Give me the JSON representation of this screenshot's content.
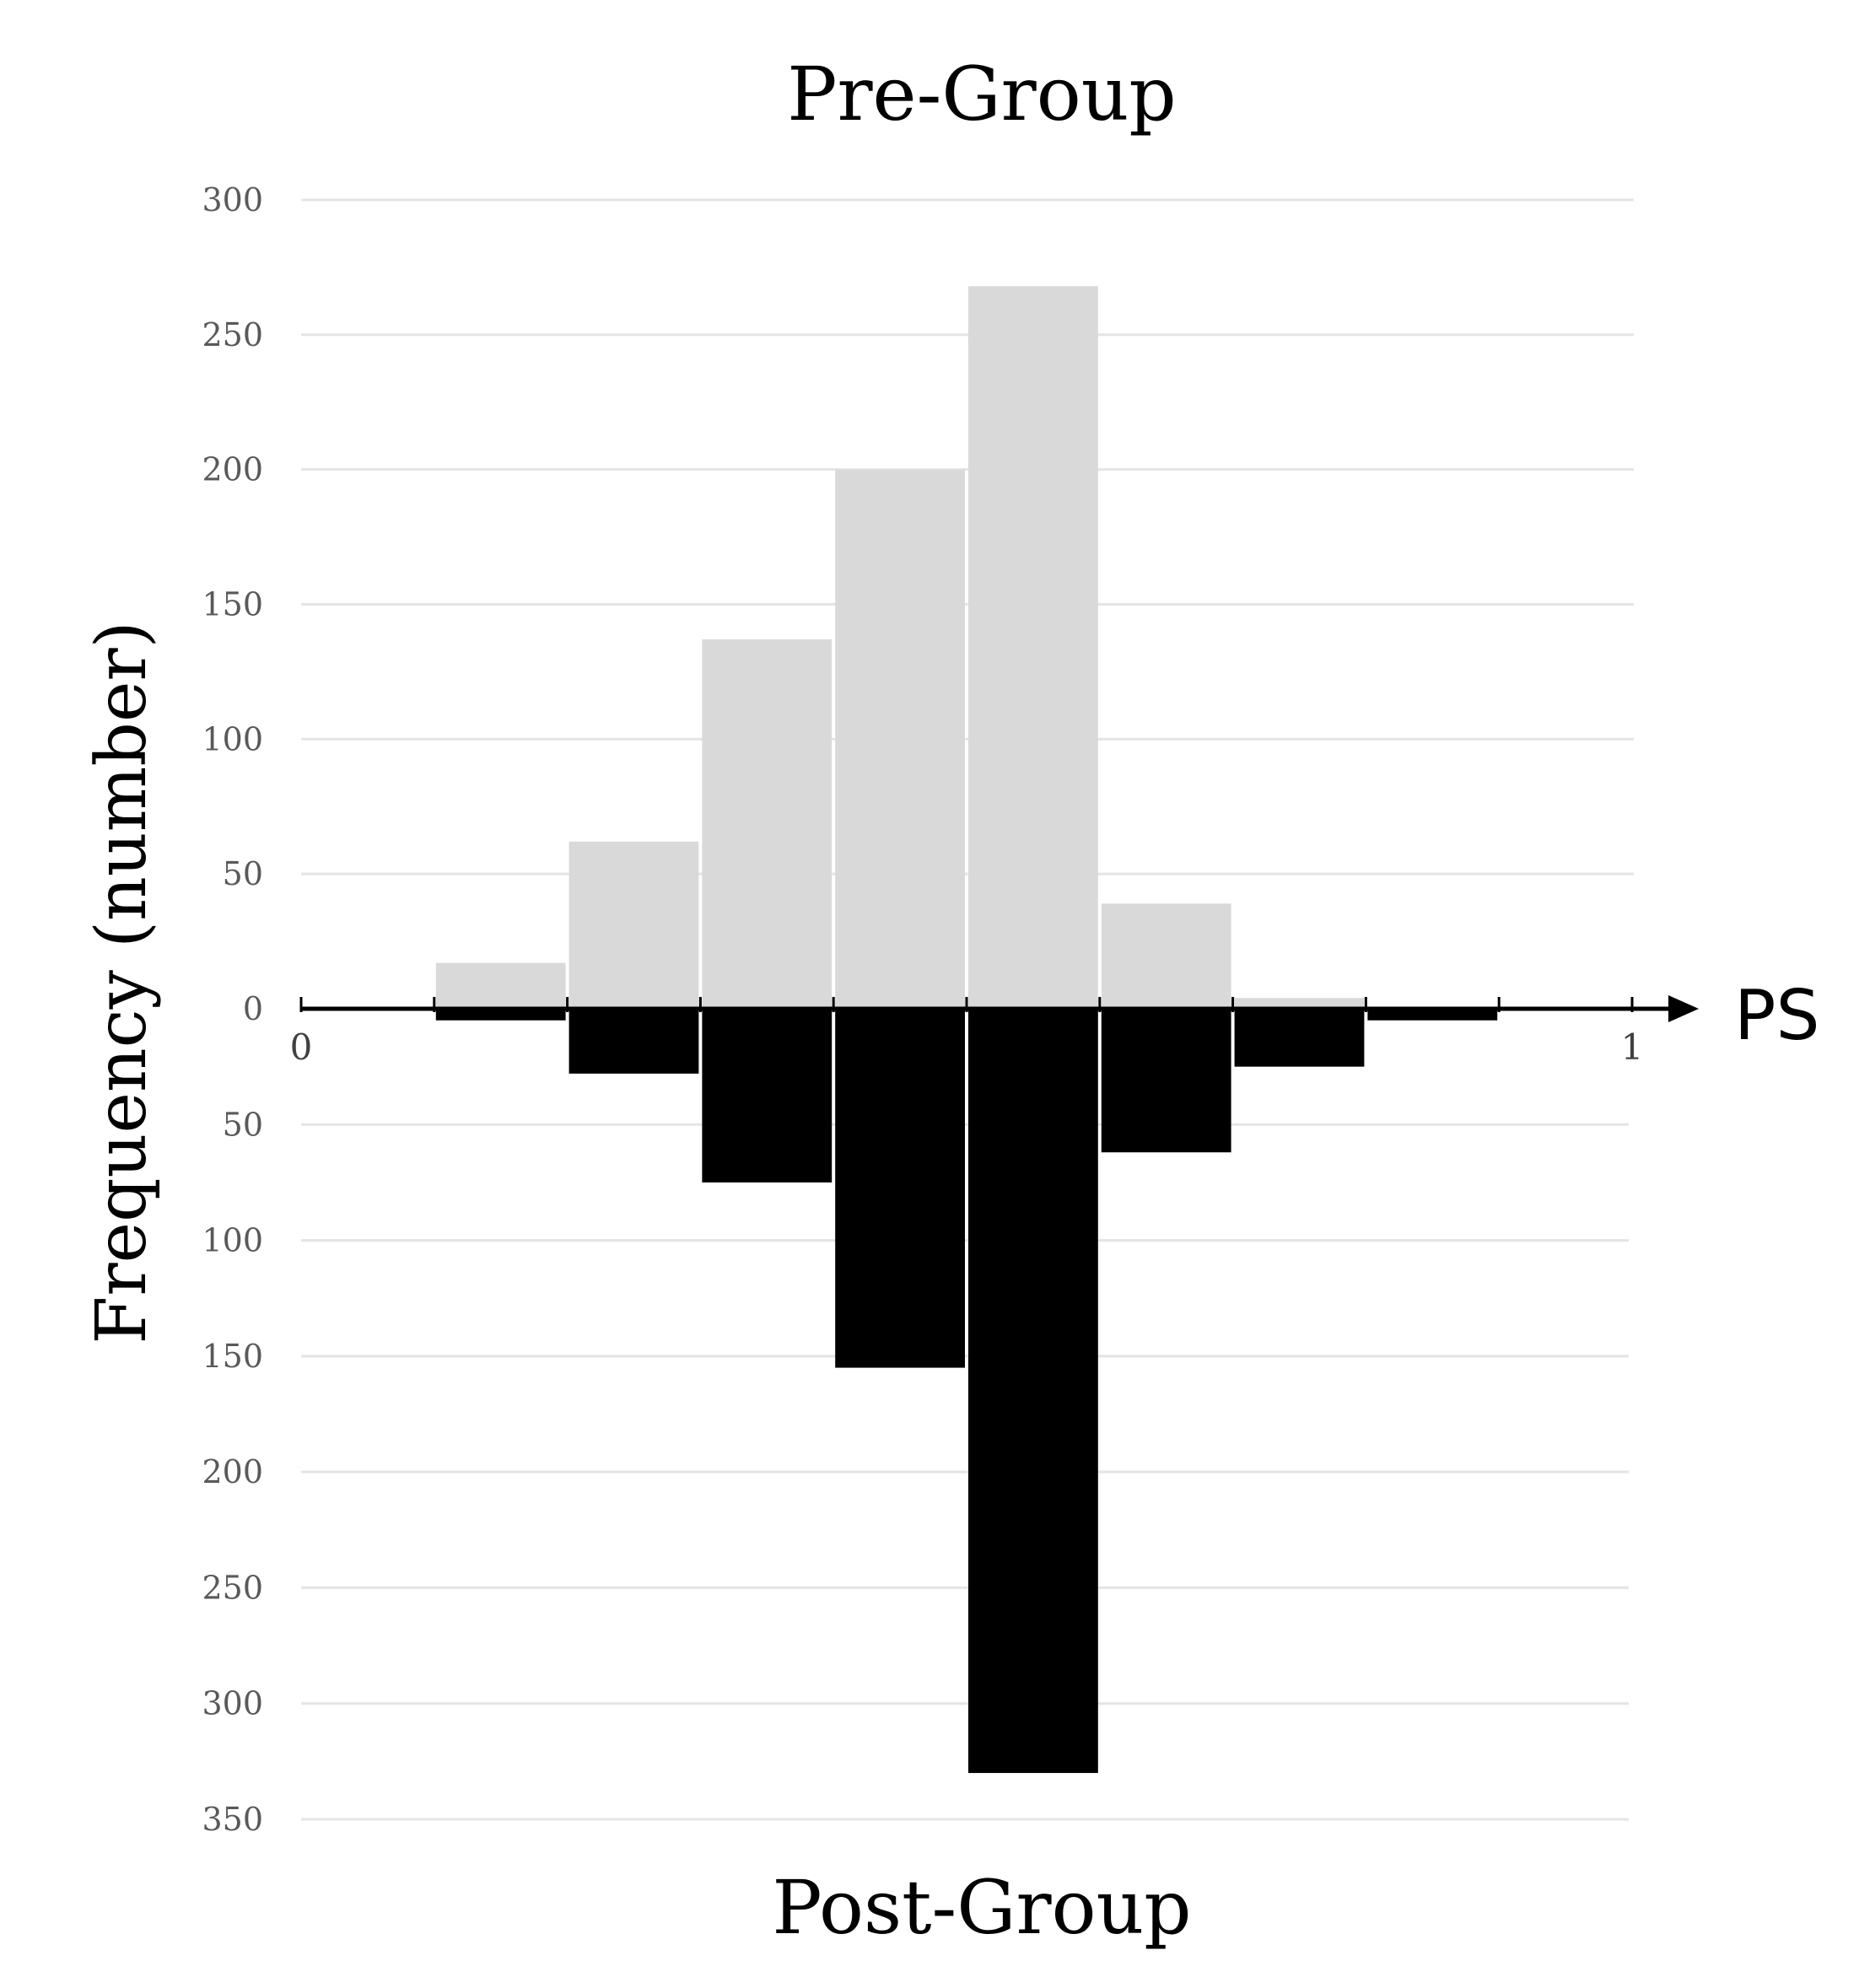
{
  "chart_data": {
    "type": "bar",
    "top_title": "Pre-Group",
    "bottom_title": "Post-Group",
    "ylabel": "Frequency (number)",
    "xlabel": "PS",
    "x_ticks": [
      {
        "value": 0,
        "label": "0"
      },
      {
        "value": 1,
        "label": "1"
      }
    ],
    "xlim": [
      0,
      1
    ],
    "bin_edges": [
      0.1,
      0.2,
      0.3,
      0.4,
      0.5,
      0.6,
      0.7,
      0.8,
      0.9
    ],
    "ylim_upper": [
      0,
      300
    ],
    "ylim_lower": [
      0,
      350
    ],
    "upper_ticks": [
      "0",
      "50",
      "100",
      "150",
      "200",
      "250",
      "300"
    ],
    "lower_ticks": [
      "50",
      "100",
      "150",
      "200",
      "250",
      "300",
      "350"
    ],
    "grid": true,
    "series": [
      {
        "name": "Pre-Group",
        "direction": "up",
        "color": "#d9d9d9",
        "values": [
          17,
          62,
          137,
          200,
          268,
          39,
          4,
          0
        ]
      },
      {
        "name": "Post-Group",
        "direction": "down",
        "color": "#000000",
        "values": [
          5,
          28,
          75,
          155,
          330,
          62,
          25,
          5
        ]
      }
    ]
  }
}
